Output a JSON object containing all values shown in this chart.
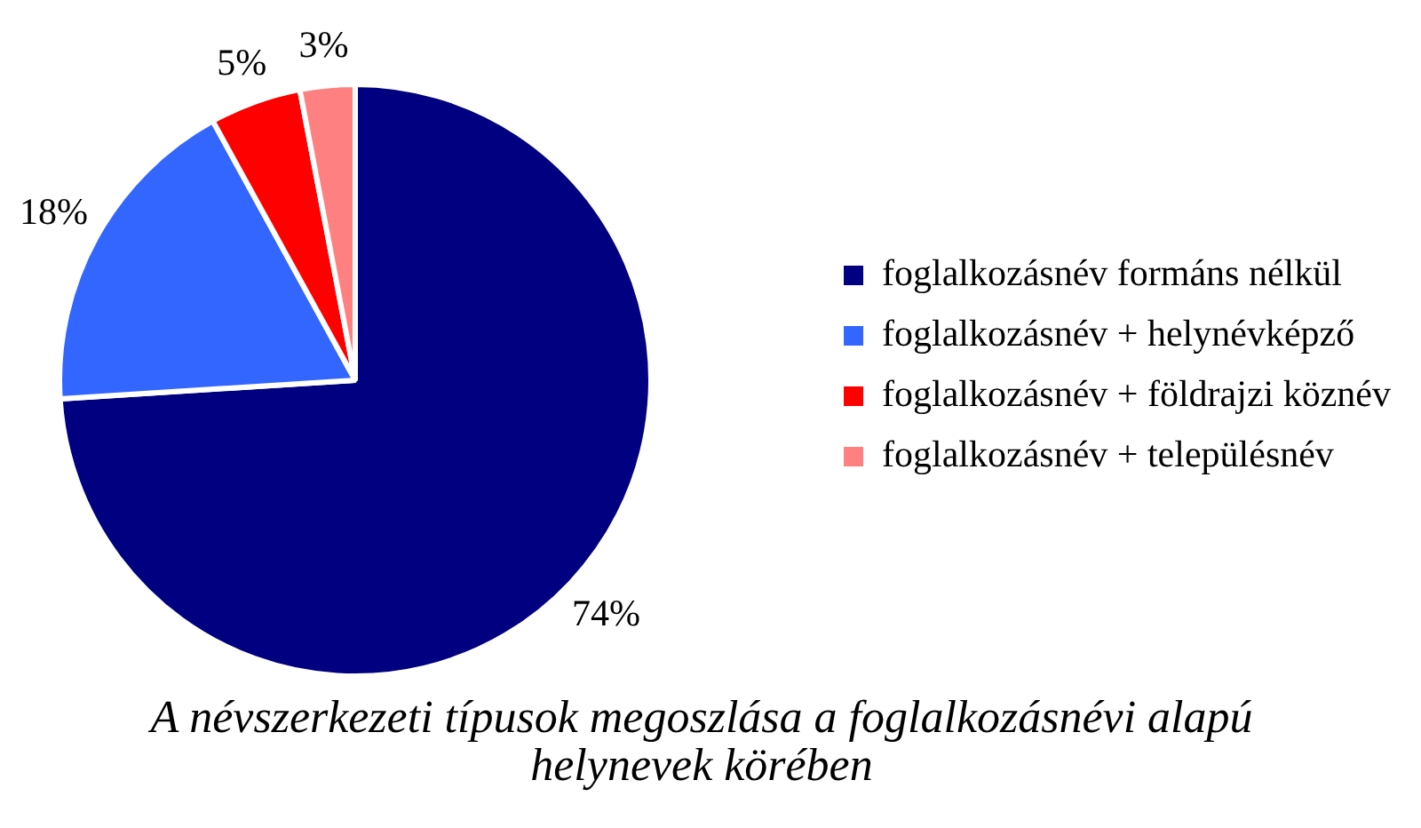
{
  "chart_data": {
    "type": "pie",
    "title": "A névszerkezeti típusok megoszlása a foglalkozásnévi alapú helynevek körében",
    "categories": [
      "foglalkozásnév formáns nélkül",
      "foglalkozásnév + helynévképző",
      "foglalkozásnév + földrajzi köznév",
      "foglalkozásnév + településnév"
    ],
    "values": [
      74,
      18,
      5,
      3
    ],
    "colors": [
      "#000080",
      "#3366ff",
      "#ff0000",
      "#ff8080"
    ],
    "value_labels": [
      "74%",
      "18%",
      "5%",
      "3%"
    ],
    "legend": "right"
  }
}
